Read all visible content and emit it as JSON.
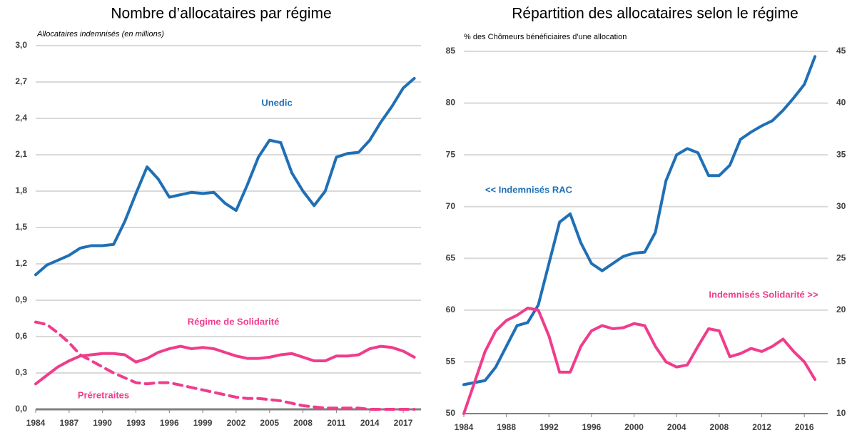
{
  "chart_data": [
    {
      "type": "line",
      "title": "Nombre d’allocataires par régime",
      "subtitle": "Allocataires indemnisés (en millions)",
      "x": [
        1984,
        1985,
        1986,
        1987,
        1988,
        1989,
        1990,
        1991,
        1992,
        1993,
        1994,
        1995,
        1996,
        1997,
        1998,
        1999,
        2000,
        2001,
        2002,
        2003,
        2004,
        2005,
        2006,
        2007,
        2008,
        2009,
        2010,
        2011,
        2012,
        2013,
        2014,
        2015,
        2016,
        2017,
        2018
      ],
      "xlim": [
        1984,
        2018.6
      ],
      "xticks": [
        1984,
        1987,
        1990,
        1993,
        1996,
        1999,
        2002,
        2005,
        2008,
        2011,
        2014,
        2017
      ],
      "ylim": [
        0,
        3.0
      ],
      "yticks": [
        {
          "value": 0,
          "label": "0,0"
        },
        {
          "value": 0.3,
          "label": "0,3"
        },
        {
          "value": 0.6,
          "label": "0,6"
        },
        {
          "value": 0.9,
          "label": "0,9"
        },
        {
          "value": 1.2,
          "label": "1,2"
        },
        {
          "value": 1.5,
          "label": "1,5"
        },
        {
          "value": 1.8,
          "label": "1,8"
        },
        {
          "value": 2.1,
          "label": "2,1"
        },
        {
          "value": 2.4,
          "label": "2,4"
        },
        {
          "value": 2.7,
          "label": "2,7"
        },
        {
          "value": 3.0,
          "label": "3,0"
        }
      ],
      "grid": true,
      "series": [
        {
          "name": "Unedic",
          "color": "#1f6fb5",
          "line_style": "solid",
          "values": [
            1.11,
            1.19,
            1.23,
            1.27,
            1.33,
            1.35,
            1.35,
            1.36,
            1.55,
            1.78,
            2.0,
            1.9,
            1.75,
            1.77,
            1.79,
            1.78,
            1.79,
            1.7,
            1.64,
            1.85,
            2.08,
            2.22,
            2.2,
            1.95,
            1.8,
            1.68,
            1.8,
            2.08,
            2.11,
            2.12,
            2.22,
            2.37,
            2.5,
            2.65,
            2.73
          ]
        },
        {
          "name": "Régime de Solidarité",
          "color": "#f03c8c",
          "line_style": "solid",
          "values": [
            0.21,
            0.28,
            0.35,
            0.4,
            0.44,
            0.45,
            0.46,
            0.46,
            0.45,
            0.39,
            0.42,
            0.47,
            0.5,
            0.52,
            0.5,
            0.51,
            0.5,
            0.47,
            0.44,
            0.42,
            0.42,
            0.43,
            0.45,
            0.46,
            0.43,
            0.4,
            0.4,
            0.44,
            0.44,
            0.45,
            0.5,
            0.52,
            0.51,
            0.48,
            0.43
          ]
        },
        {
          "name": "Préretraites",
          "color": "#f03c8c",
          "line_style": "dashed",
          "values": [
            0.72,
            0.7,
            0.63,
            0.55,
            0.45,
            0.4,
            0.35,
            0.3,
            0.26,
            0.22,
            0.21,
            0.22,
            0.22,
            0.2,
            0.18,
            0.16,
            0.14,
            0.12,
            0.1,
            0.09,
            0.09,
            0.08,
            0.07,
            0.05,
            0.03,
            0.02,
            0.01,
            0.01,
            0.01,
            0.01,
            0,
            0,
            0,
            0,
            0
          ]
        }
      ]
    },
    {
      "type": "line",
      "title": "Répartition des allocataires selon le régime",
      "subtitle": "% des Chômeurs bénéficiaires d'une allocation",
      "x": [
        1984,
        1985,
        1986,
        1987,
        1988,
        1989,
        1990,
        1991,
        1992,
        1993,
        1994,
        1995,
        1996,
        1997,
        1998,
        1999,
        2000,
        2001,
        2002,
        2003,
        2004,
        2005,
        2006,
        2007,
        2008,
        2009,
        2010,
        2011,
        2012,
        2013,
        2014,
        2015,
        2016,
        2017
      ],
      "xlim": [
        1984,
        2018.2
      ],
      "xticks": [
        1984,
        1988,
        1992,
        1996,
        2000,
        2004,
        2008,
        2012,
        2016
      ],
      "ylim": [
        50,
        85
      ],
      "yticks": [
        50,
        55,
        60,
        65,
        70,
        75,
        80,
        85
      ],
      "y2lim": [
        10,
        45
      ],
      "y2ticks": [
        10,
        15,
        20,
        25,
        30,
        35,
        40,
        45
      ],
      "grid": true,
      "series": [
        {
          "name": "<< Indemnisés RAC",
          "color": "#1f6fb5",
          "line_style": "solid",
          "values": [
            52.8,
            53.0,
            53.2,
            54.5,
            56.5,
            58.5,
            58.8,
            60.5,
            64.5,
            68.5,
            69.3,
            66.5,
            64.5,
            63.8,
            64.5,
            65.2,
            65.5,
            65.6,
            67.5,
            72.5,
            75.0,
            75.6,
            75.2,
            73.0,
            73.0,
            74.0,
            76.5,
            77.2,
            77.8,
            78.3,
            79.3,
            80.5,
            81.8,
            84.5
          ]
        },
        {
          "name": "Indemnisés Solidarité >>",
          "color": "#f03c8c",
          "line_style": "solid",
          "axis": "y2",
          "values": [
            10,
            13,
            16,
            18,
            19,
            19.5,
            20.2,
            20.0,
            17.5,
            14.0,
            14.0,
            16.5,
            18.0,
            18.5,
            18.2,
            18.3,
            18.7,
            18.5,
            16.5,
            15.0,
            14.5,
            14.7,
            16.5,
            18.2,
            18.0,
            15.5,
            15.8,
            16.3,
            16.0,
            16.5,
            17.2,
            16.0,
            15.0,
            13.3
          ]
        }
      ]
    }
  ]
}
